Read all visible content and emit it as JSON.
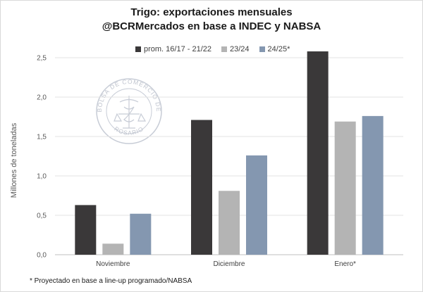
{
  "title_line1": "Trigo: exportaciones mensuales",
  "title_line2": "@BCRMercados en base a INDEC y NABSA",
  "footnote": "* Proyectado en base a line-up programado/NABSA",
  "watermark": {
    "top_text": "BOLSA DE COMERCIO DE",
    "bottom_text": "ROSARIO"
  },
  "chart_data": {
    "type": "bar",
    "categories": [
      "Noviembre",
      "Diciembre",
      "Enero*"
    ],
    "series": [
      {
        "name": "prom. 16/17 - 21/22",
        "color": "#3a3839",
        "values": [
          0.63,
          1.71,
          2.58
        ]
      },
      {
        "name": "23/24",
        "color": "#b4b4b4",
        "values": [
          0.14,
          0.81,
          1.69
        ]
      },
      {
        "name": "24/25*",
        "color": "#8497b0",
        "values": [
          0.52,
          1.26,
          1.76
        ]
      }
    ],
    "ylabel": "Millones de toneladas",
    "ylim": [
      0,
      2.5
    ],
    "yticks": [
      "0,0",
      "0,5",
      "1,0",
      "1,5",
      "2,0",
      "2,5"
    ],
    "ytick_values": [
      0,
      0.5,
      1.0,
      1.5,
      2.0,
      2.5
    ],
    "grid": true,
    "legend": "top-center"
  }
}
